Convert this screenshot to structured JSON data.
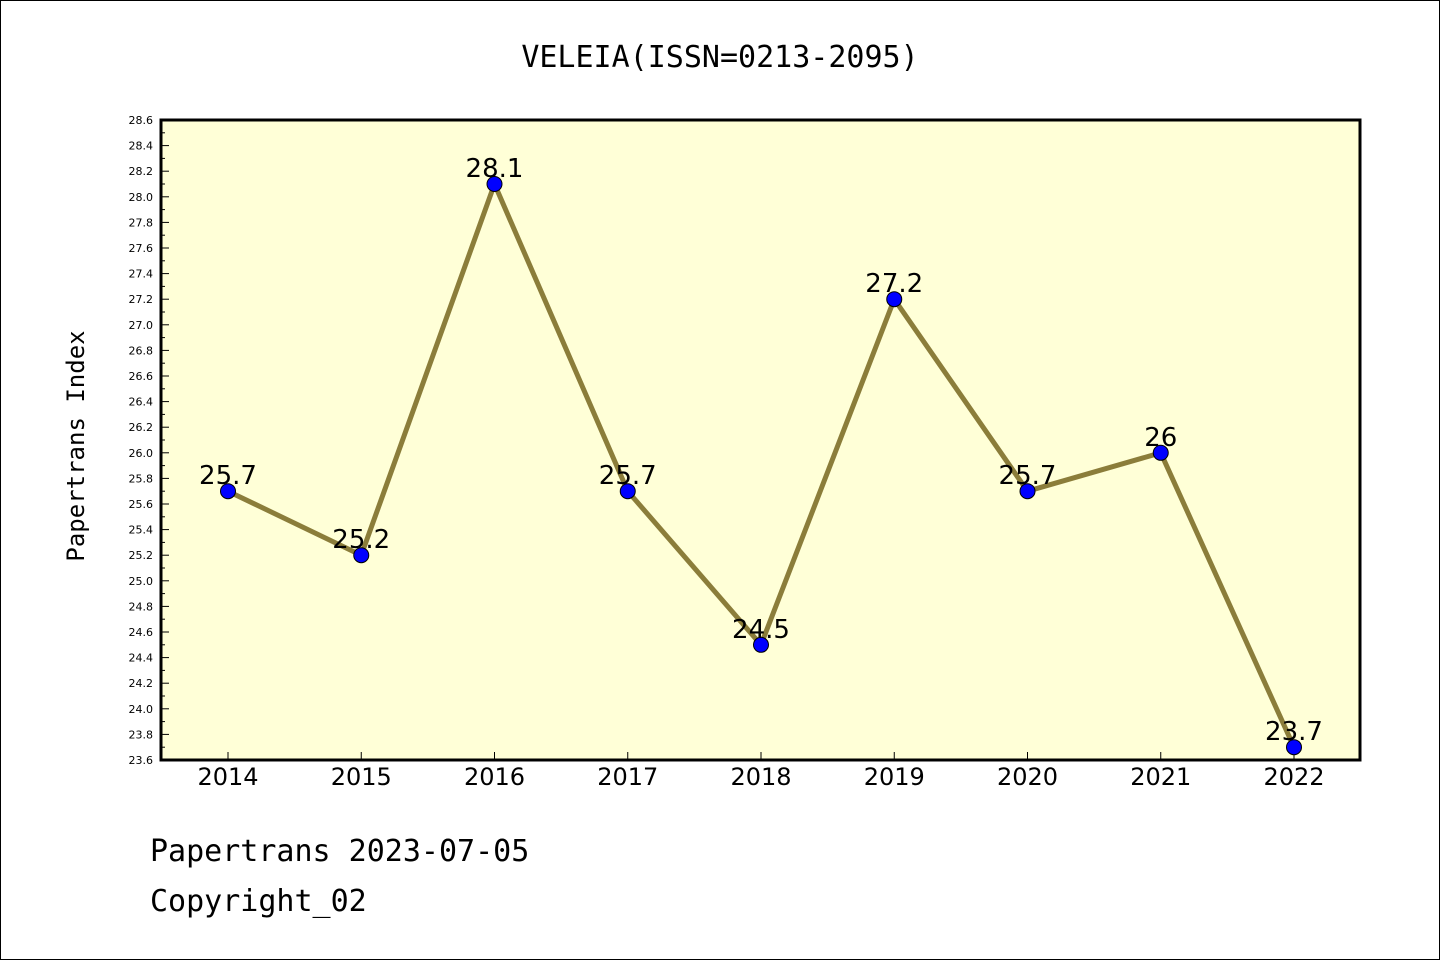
{
  "chart_data": {
    "type": "line",
    "title": "VELEIA(ISSN=0213-2095)",
    "ylabel": "Papertrans Index",
    "xlabel": "",
    "x": [
      "2014",
      "2015",
      "2016",
      "2017",
      "2018",
      "2019",
      "2020",
      "2021",
      "2022"
    ],
    "series": [
      {
        "values": [
          25.7,
          25.2,
          28.1,
          25.7,
          24.5,
          27.2,
          25.7,
          26.0,
          23.7
        ],
        "labels": [
          "25.7",
          "25.2",
          "28.1",
          "25.7",
          "24.5",
          "27.2",
          "25.7",
          "26",
          "23.7"
        ]
      }
    ],
    "ylim": [
      23.6,
      28.6
    ],
    "yticks": [
      "23.6",
      "23.8",
      "24.0",
      "24.2",
      "24.4",
      "24.6",
      "24.8",
      "25.0",
      "25.2",
      "25.4",
      "25.6",
      "25.8",
      "26.0",
      "26.2",
      "26.4",
      "26.6",
      "26.8",
      "27.0",
      "27.2",
      "27.4",
      "27.6",
      "27.8",
      "28.0",
      "28.2",
      "28.4",
      "28.6"
    ],
    "grid": false,
    "colors": {
      "line": "#8b7d3a",
      "marker": "#0000ff",
      "plot_background": "#ffffd7"
    }
  },
  "footer": {
    "date_line": "Papertrans 2023-07-05",
    "copyright_line": "Copyright_02"
  }
}
